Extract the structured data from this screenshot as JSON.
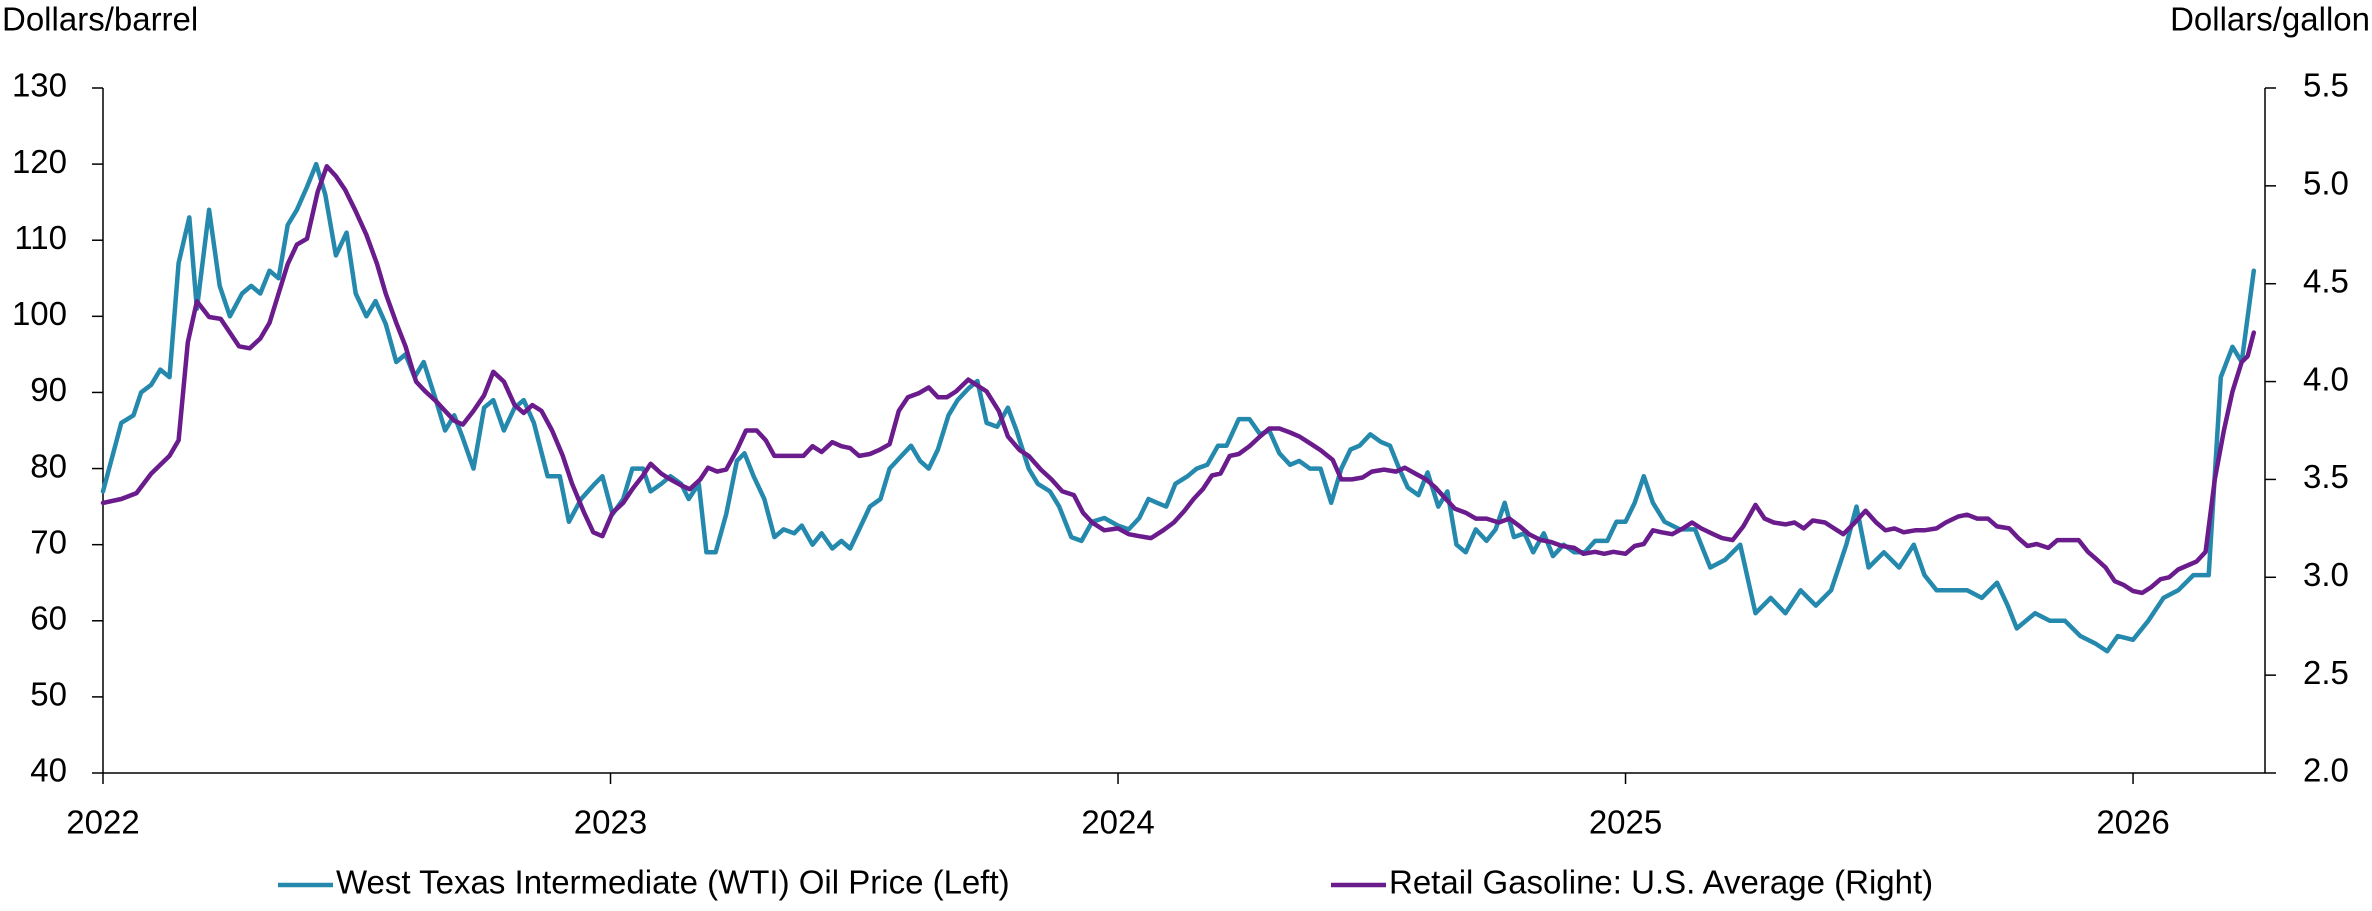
{
  "chart_data": {
    "type": "line",
    "ylabel": "Dollars/barrel",
    "y2label": "Dollars/gallon",
    "xlim": [
      2022,
      2026.26
    ],
    "xticks": [
      2022,
      2023,
      2024,
      2025,
      2026
    ],
    "ylim": [
      40,
      130
    ],
    "yticks": [
      40,
      50,
      60,
      70,
      80,
      90,
      100,
      110,
      120,
      130
    ],
    "y2lim": [
      2.0,
      5.5
    ],
    "y2ticks": [
      {
        "value": 2.0,
        "label": "2.0"
      },
      2.5,
      {
        "value": 3.0,
        "label": "3.0"
      },
      3.5,
      {
        "value": 4.0,
        "label": "4.0"
      },
      4.5,
      {
        "value": 5.0,
        "label": "5.0"
      },
      5.5
    ],
    "grid": false,
    "legend": "bottom",
    "series": [
      {
        "name": "West Texas Intermediate (WTI) Oil Price (Left)",
        "color": "#2589ad",
        "axis": "y",
        "x": [
          2022.0,
          2022.036,
          2022.06,
          2022.075,
          2022.095,
          2022.113,
          2022.131,
          2022.149,
          2022.17,
          2022.185,
          2022.209,
          2022.23,
          2022.25,
          2022.274,
          2022.292,
          2022.31,
          2022.328,
          2022.346,
          2022.364,
          2022.382,
          2022.402,
          2022.42,
          2022.438,
          2022.459,
          2022.48,
          2022.498,
          2022.519,
          2022.537,
          2022.557,
          2022.578,
          2022.596,
          2022.614,
          2022.632,
          2022.656,
          2022.674,
          2022.692,
          2022.709,
          2022.73,
          2022.751,
          2022.769,
          2022.79,
          2022.811,
          2022.829,
          2022.849,
          2022.876,
          2022.9,
          2022.918,
          2022.942,
          2022.969,
          2022.984,
          2023.004,
          2023.025,
          2023.043,
          2023.064,
          2023.079,
          2023.1,
          2023.118,
          2023.139,
          2023.154,
          2023.174,
          2023.189,
          2023.207,
          2023.228,
          2023.249,
          2023.264,
          2023.282,
          2023.303,
          2023.323,
          2023.341,
          2023.362,
          2023.377,
          2023.398,
          2023.416,
          2023.437,
          2023.455,
          2023.472,
          2023.49,
          2023.511,
          2023.532,
          2023.55,
          2023.571,
          2023.592,
          2023.61,
          2023.627,
          2023.645,
          2023.666,
          2023.684,
          2023.705,
          2023.723,
          2023.741,
          2023.762,
          2023.783,
          2023.8,
          2023.824,
          2023.842,
          2023.866,
          2023.884,
          2023.908,
          2023.928,
          2023.949,
          2023.973,
          2024.0,
          2024.021,
          2024.042,
          2024.06,
          2024.077,
          2024.095,
          2024.113,
          2024.137,
          2024.155,
          2024.176,
          2024.197,
          2024.214,
          2024.238,
          2024.259,
          2024.28,
          2024.298,
          2024.318,
          2024.339,
          2024.357,
          2024.378,
          2024.399,
          2024.42,
          2024.44,
          2024.458,
          2024.476,
          2024.497,
          2024.518,
          2024.536,
          2024.554,
          2024.571,
          2024.592,
          2024.61,
          2024.631,
          2024.649,
          2024.667,
          2024.685,
          2024.705,
          2024.726,
          2024.744,
          2024.762,
          2024.78,
          2024.801,
          2024.818,
          2024.839,
          2024.857,
          2024.878,
          2024.899,
          2024.92,
          2024.94,
          2024.964,
          2024.982,
          2025.0,
          2025.018,
          2025.036,
          2025.054,
          2025.077,
          2025.107,
          2025.137,
          2025.167,
          2025.196,
          2025.226,
          2025.256,
          2025.286,
          2025.315,
          2025.345,
          2025.375,
          2025.405,
          2025.435,
          2025.455,
          2025.479,
          2025.509,
          2025.539,
          2025.568,
          2025.589,
          2025.613,
          2025.643,
          2025.673,
          2025.702,
          2025.732,
          2025.753,
          2025.771,
          2025.807,
          2025.836,
          2025.866,
          2025.896,
          2025.926,
          2025.949,
          2025.97,
          2026.0,
          2026.03,
          2026.06,
          2026.089,
          2026.119,
          2026.149,
          2026.173,
          2026.196,
          2026.214,
          2026.238
        ],
        "values": [
          77,
          86,
          87,
          90,
          91,
          93,
          92,
          107,
          113,
          101,
          114,
          104,
          100,
          103,
          104,
          103,
          106,
          105,
          112,
          114,
          117,
          120,
          116,
          108,
          111,
          103,
          100,
          102,
          99,
          94,
          95,
          92,
          94,
          89,
          85,
          87,
          84,
          80,
          88,
          89,
          85,
          88,
          89,
          86,
          79,
          79,
          73,
          76,
          78,
          79,
          74,
          76,
          80,
          80,
          77,
          78,
          79,
          78,
          76,
          78,
          69,
          69,
          74,
          81,
          82,
          79,
          76,
          71,
          72,
          71.5,
          72.5,
          70,
          71.5,
          69.5,
          70.5,
          69.5,
          72,
          75,
          76,
          80,
          81.5,
          83,
          81,
          80,
          82.5,
          87,
          89,
          90.5,
          91.5,
          86,
          85.5,
          88,
          85,
          80,
          78,
          77,
          75,
          71,
          70.5,
          73,
          73.5,
          72.5,
          72,
          73.5,
          76,
          75.5,
          75,
          78,
          79,
          80,
          80.5,
          83,
          83,
          86.5,
          86.5,
          84.5,
          85,
          82,
          80.5,
          81,
          80,
          80,
          75.5,
          80,
          82.5,
          83,
          84.5,
          83.5,
          83,
          80,
          77.5,
          76.5,
          79.5,
          75,
          77,
          70,
          69,
          72,
          70.5,
          72,
          75.5,
          71,
          71.5,
          69,
          71.5,
          68.5,
          70,
          69,
          69,
          70.5,
          70.5,
          73,
          73,
          75.5,
          79,
          75.5,
          73,
          72,
          72,
          67,
          68,
          70,
          61,
          63,
          61,
          64,
          62,
          64,
          70,
          75,
          67,
          69,
          67,
          70,
          66,
          64,
          64,
          64,
          63,
          65,
          62,
          59,
          61,
          60,
          60,
          58,
          57,
          56,
          58,
          57.5,
          60,
          63,
          64,
          66,
          66,
          92,
          96,
          94,
          106
        ]
      },
      {
        "name": "Retail Gasoline: U.S. Average (Right)",
        "color": "#6a1b8c",
        "axis": "y2",
        "x": [
          2022.0,
          2022.036,
          2022.066,
          2022.095,
          2022.131,
          2022.149,
          2022.167,
          2022.185,
          2022.209,
          2022.232,
          2022.25,
          2022.268,
          2022.289,
          2022.31,
          2022.328,
          2022.346,
          2022.364,
          2022.382,
          2022.402,
          2022.423,
          2022.441,
          2022.459,
          2022.477,
          2022.498,
          2022.519,
          2022.54,
          2022.557,
          2022.578,
          2022.596,
          2022.617,
          2022.635,
          2022.656,
          2022.674,
          2022.692,
          2022.709,
          2022.73,
          2022.751,
          2022.769,
          2022.79,
          2022.811,
          2022.829,
          2022.846,
          2022.864,
          2022.885,
          2022.906,
          2022.924,
          2022.948,
          2022.966,
          2022.984,
          2023.004,
          2023.025,
          2023.043,
          2023.064,
          2023.079,
          2023.1,
          2023.118,
          2023.139,
          2023.156,
          2023.177,
          2023.192,
          2023.21,
          2023.228,
          2023.249,
          2023.267,
          2023.288,
          2023.306,
          2023.323,
          2023.341,
          2023.362,
          2023.38,
          2023.398,
          2023.416,
          2023.437,
          2023.455,
          2023.472,
          2023.49,
          2023.511,
          2023.529,
          2023.55,
          2023.568,
          2023.586,
          2023.607,
          2023.627,
          2023.645,
          2023.663,
          2023.681,
          2023.705,
          2023.723,
          2023.741,
          2023.765,
          2023.783,
          2023.806,
          2023.824,
          2023.848,
          2023.869,
          2023.89,
          2023.913,
          2023.931,
          2023.949,
          2023.973,
          2024.0,
          2024.021,
          2024.042,
          2024.065,
          2024.089,
          2024.11,
          2024.131,
          2024.149,
          2024.167,
          2024.185,
          2024.202,
          2024.22,
          2024.238,
          2024.259,
          2024.28,
          2024.298,
          2024.318,
          2024.339,
          2024.357,
          2024.381,
          2024.399,
          2024.423,
          2024.44,
          2024.461,
          2024.482,
          2024.5,
          2024.524,
          2024.548,
          2024.565,
          2024.586,
          2024.607,
          2024.625,
          2024.646,
          2024.664,
          2024.685,
          2024.705,
          2024.726,
          2024.75,
          2024.771,
          2024.792,
          2024.81,
          2024.833,
          2024.854,
          2024.875,
          2024.899,
          2024.917,
          2024.94,
          2024.958,
          2024.976,
          2025.0,
          2025.018,
          2025.036,
          2025.054,
          2025.071,
          2025.092,
          2025.113,
          2025.131,
          2025.149,
          2025.173,
          2025.19,
          2025.211,
          2025.232,
          2025.256,
          2025.274,
          2025.292,
          2025.315,
          2025.333,
          2025.351,
          2025.369,
          2025.393,
          2025.411,
          2025.429,
          2025.452,
          2025.473,
          2025.494,
          2025.512,
          2025.53,
          2025.548,
          2025.571,
          2025.589,
          2025.613,
          2025.631,
          2025.655,
          2025.673,
          2025.693,
          2025.714,
          2025.732,
          2025.756,
          2025.774,
          2025.792,
          2025.81,
          2025.833,
          2025.851,
          2025.869,
          2025.893,
          2025.911,
          2025.929,
          2025.946,
          2025.964,
          2025.982,
          2026.0,
          2026.018,
          2026.036,
          2026.054,
          2026.071,
          2026.089,
          2026.107,
          2026.125,
          2026.143,
          2026.161,
          2026.179,
          2026.196,
          2026.214,
          2026.226,
          2026.238
        ],
        "values": [
          3.38,
          3.4,
          3.43,
          3.53,
          3.62,
          3.7,
          4.2,
          4.41,
          4.33,
          4.32,
          4.25,
          4.18,
          4.17,
          4.22,
          4.3,
          4.45,
          4.6,
          4.7,
          4.73,
          4.97,
          5.1,
          5.05,
          4.98,
          4.87,
          4.75,
          4.6,
          4.45,
          4.3,
          4.18,
          4.0,
          3.95,
          3.9,
          3.85,
          3.8,
          3.78,
          3.85,
          3.93,
          4.05,
          4.0,
          3.88,
          3.84,
          3.88,
          3.85,
          3.75,
          3.62,
          3.48,
          3.33,
          3.23,
          3.21,
          3.33,
          3.38,
          3.45,
          3.52,
          3.58,
          3.53,
          3.5,
          3.47,
          3.45,
          3.5,
          3.56,
          3.54,
          3.55,
          3.65,
          3.75,
          3.75,
          3.7,
          3.62,
          3.62,
          3.62,
          3.62,
          3.67,
          3.64,
          3.69,
          3.67,
          3.66,
          3.62,
          3.63,
          3.65,
          3.68,
          3.85,
          3.92,
          3.94,
          3.97,
          3.92,
          3.92,
          3.95,
          4.01,
          3.98,
          3.95,
          3.85,
          3.72,
          3.65,
          3.62,
          3.55,
          3.5,
          3.44,
          3.42,
          3.33,
          3.28,
          3.24,
          3.25,
          3.22,
          3.21,
          3.2,
          3.24,
          3.28,
          3.34,
          3.4,
          3.45,
          3.52,
          3.53,
          3.62,
          3.63,
          3.67,
          3.72,
          3.76,
          3.76,
          3.74,
          3.72,
          3.68,
          3.65,
          3.6,
          3.5,
          3.5,
          3.51,
          3.54,
          3.55,
          3.54,
          3.56,
          3.53,
          3.5,
          3.46,
          3.4,
          3.35,
          3.33,
          3.3,
          3.3,
          3.28,
          3.3,
          3.26,
          3.22,
          3.19,
          3.18,
          3.16,
          3.15,
          3.12,
          3.13,
          3.12,
          3.13,
          3.12,
          3.16,
          3.17,
          3.24,
          3.23,
          3.22,
          3.25,
          3.28,
          3.25,
          3.22,
          3.2,
          3.19,
          3.26,
          3.37,
          3.3,
          3.28,
          3.27,
          3.28,
          3.25,
          3.29,
          3.28,
          3.25,
          3.22,
          3.28,
          3.34,
          3.28,
          3.24,
          3.25,
          3.23,
          3.24,
          3.24,
          3.25,
          3.28,
          3.31,
          3.32,
          3.3,
          3.3,
          3.26,
          3.25,
          3.2,
          3.16,
          3.17,
          3.15,
          3.19,
          3.19,
          3.19,
          3.13,
          3.09,
          3.05,
          2.98,
          2.96,
          2.93,
          2.92,
          2.95,
          2.99,
          3.0,
          3.04,
          3.06,
          3.08,
          3.13,
          3.5,
          3.75,
          3.95,
          4.1,
          4.13,
          4.25
        ]
      }
    ]
  }
}
